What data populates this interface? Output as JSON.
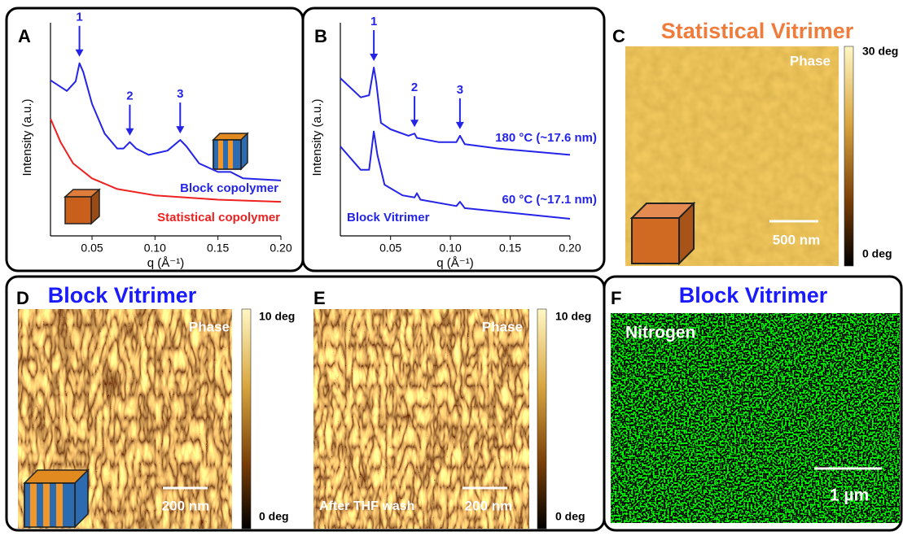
{
  "chart_data": [
    {
      "type": "line",
      "panel_label": "A",
      "xlabel": "q (Å⁻¹)",
      "ylabel": "Intensity (a.u.)",
      "xlim": [
        0.017,
        0.2
      ],
      "ylim": [
        0,
        100
      ],
      "xticks": [
        0.05,
        {
          "value": 0.1,
          "label": "0.10"
        },
        0.15,
        {
          "value": 0.2,
          "label": "0.20"
        }
      ],
      "series": [
        {
          "name": "Block copolymer",
          "color": "#2424e8",
          "x": [
            0.017,
            0.03,
            0.037,
            0.04,
            0.043,
            0.05,
            0.06,
            0.07,
            0.075,
            0.08,
            0.085,
            0.095,
            0.11,
            0.12,
            0.125,
            0.135,
            0.15,
            0.16,
            0.17,
            0.2
          ],
          "values": [
            73,
            68,
            72.5,
            81,
            77,
            62,
            48,
            41,
            41,
            44,
            41,
            38,
            40,
            45,
            42,
            34,
            30,
            30,
            27,
            26
          ]
        },
        {
          "name": "Statistical copolymer",
          "color": "#ee2020",
          "x": [
            0.017,
            0.025,
            0.035,
            0.05,
            0.07,
            0.1,
            0.15,
            0.2
          ],
          "values": [
            55,
            44,
            34,
            27,
            22,
            19,
            17,
            16
          ]
        }
      ],
      "annotations": [
        {
          "text": "1",
          "x": 0.04
        },
        {
          "text": "2",
          "x": 0.08
        },
        {
          "text": "3",
          "x": 0.12
        }
      ]
    },
    {
      "type": "line",
      "panel_label": "B",
      "xlabel": "q (Å⁻¹)",
      "ylabel": "Intensity (a.u.)",
      "xlim": [
        0.008,
        0.2
      ],
      "ylim": [
        0,
        100
      ],
      "xticks": [
        0.05,
        {
          "value": 0.1,
          "label": "0.10"
        },
        0.15,
        {
          "value": 0.2,
          "label": "0.20"
        }
      ],
      "note": "Block Vitrimer",
      "series": [
        {
          "name": "180 °C (~17.6 nm)",
          "color": "#2424e8",
          "x": [
            0.008,
            0.025,
            0.032,
            0.036,
            0.038,
            0.042,
            0.05,
            0.065,
            0.07,
            0.072,
            0.09,
            0.105,
            0.108,
            0.112,
            0.14,
            0.2
          ],
          "values": [
            74,
            65,
            66,
            79,
            72,
            53,
            50,
            47,
            48,
            46,
            44,
            44,
            47,
            43,
            41,
            38
          ]
        },
        {
          "name": "60 °C (~17.1 nm)",
          "color": "#2424e8",
          "x": [
            0.008,
            0.025,
            0.032,
            0.036,
            0.039,
            0.045,
            0.06,
            0.07,
            0.072,
            0.075,
            0.105,
            0.108,
            0.112,
            0.2
          ],
          "values": [
            42,
            31,
            31,
            49,
            38,
            24,
            19,
            18,
            20,
            17,
            14,
            16,
            13,
            8
          ]
        }
      ],
      "annotations": [
        {
          "text": "1",
          "x": 0.036
        },
        {
          "text": "2",
          "x": 0.07
        },
        {
          "text": "3",
          "x": 0.108
        }
      ]
    }
  ],
  "panels": {
    "C": {
      "label": "C",
      "title": "Statistical Vitrimer",
      "channel": "Phase",
      "colorbar": [
        "30 deg",
        "0 deg"
      ],
      "scale_bar": "500 nm"
    },
    "D": {
      "label": "D",
      "title": "Block Vitrimer",
      "channel": "Phase",
      "colorbar": [
        "10 deg",
        "0 deg"
      ],
      "scale_bar": "200 nm"
    },
    "E": {
      "label": "E",
      "channel": "Phase",
      "note": "After THF wash",
      "colorbar": [
        "10 deg",
        "0 deg"
      ],
      "scale_bar": "200 nm"
    },
    "F": {
      "label": "F",
      "title": "Block Vitrimer",
      "channel": "Nitrogen",
      "scale_bar": "1 µm"
    }
  }
}
